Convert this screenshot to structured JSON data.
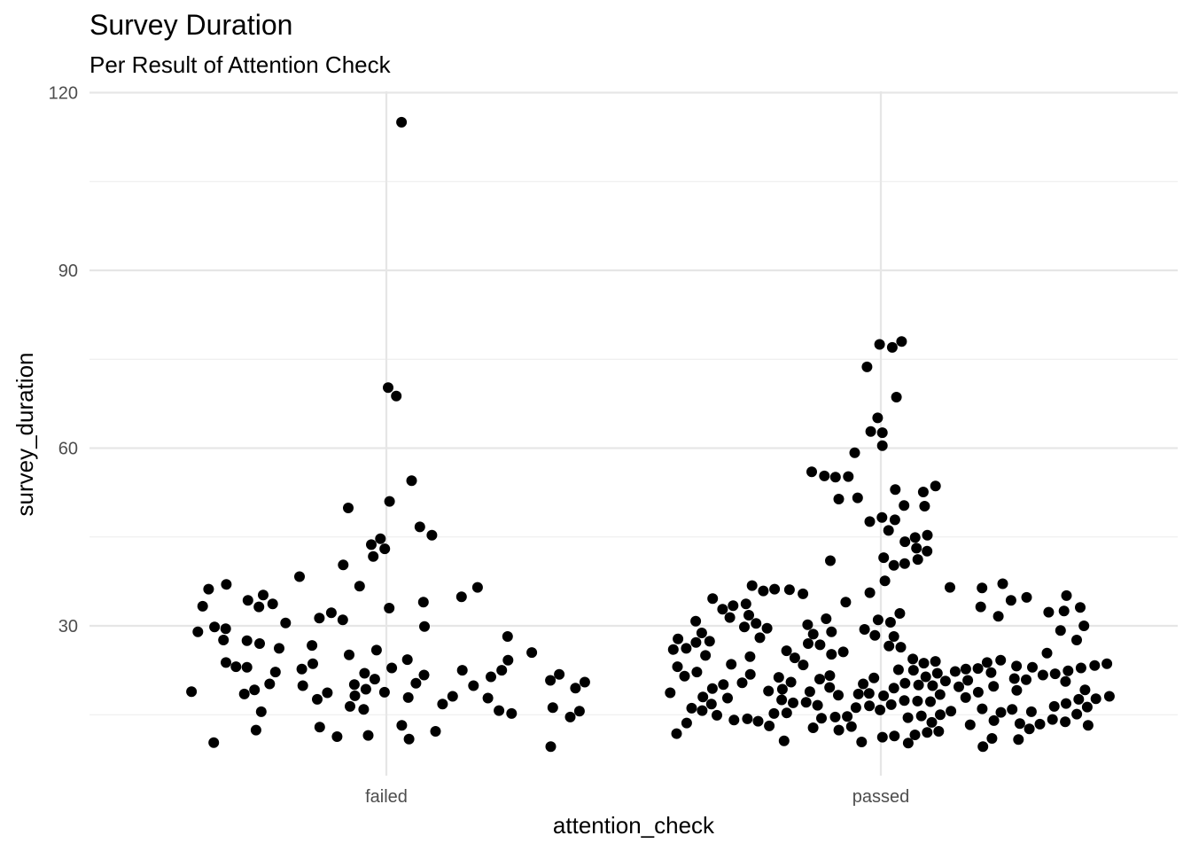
{
  "chart_data": {
    "type": "scatter",
    "subtype": "beeswarm",
    "title": "Survey Duration",
    "subtitle": "Per Result of Attention Check",
    "xlabel": "attention_check",
    "ylabel": "survey_duration",
    "categories": [
      "failed",
      "passed"
    ],
    "ylim": [
      3,
      120
    ],
    "yticks": [
      30,
      60,
      90,
      120
    ],
    "grid": true,
    "legend": "none",
    "point_color": "#000000",
    "series": [
      {
        "category": "failed",
        "values": [
          115,
          70.2,
          68.8,
          54.5,
          51.0,
          49.9,
          46.7,
          45.3,
          44.7,
          43.7,
          43.0,
          41.7,
          40.3,
          38.3,
          37.0,
          36.7,
          36.5,
          36.2,
          35.2,
          34.9,
          34.3,
          34.0,
          33.7,
          33.3,
          33.2,
          33.0,
          32.2,
          31.3,
          31.0,
          30.5,
          29.9,
          29.8,
          29.5,
          29.0,
          28.2,
          27.6,
          27.5,
          27.0,
          26.7,
          26.2,
          25.9,
          25.5,
          25.1,
          24.3,
          24.2,
          23.8,
          23.6,
          23.1,
          23.0,
          22.9,
          22.7,
          22.5,
          22.5,
          22.2,
          22.0,
          21.8,
          21.7,
          21.4,
          21.0,
          20.8,
          20.5,
          20.3,
          20.2,
          20.1,
          19.9,
          19.9,
          19.5,
          19.3,
          19.2,
          18.9,
          18.8,
          18.7,
          18.5,
          18.2,
          18.1,
          17.9,
          17.8,
          17.6,
          16.8,
          16.4,
          16.2,
          15.9,
          15.7,
          15.6,
          15.5,
          15.2,
          14.6,
          13.2,
          12.9,
          12.4,
          12.2,
          11.5,
          11.3,
          10.9,
          10.3,
          9.6
        ]
      },
      {
        "category": "passed",
        "values": [
          78,
          77.5,
          77,
          73.7,
          68.6,
          65.1,
          62.8,
          62.6,
          60.4,
          59.2,
          56,
          55.3,
          55.2,
          55.1,
          53.6,
          53,
          52.6,
          51.6,
          51.4,
          50.3,
          50.2,
          48.3,
          47.9,
          47.6,
          46.1,
          45.3,
          44.9,
          44.2,
          43.1,
          42.6,
          41.5,
          41.2,
          41,
          40.5,
          40.2,
          37.6,
          37.1,
          36.8,
          36.5,
          36.4,
          36.2,
          36.1,
          35.9,
          35.6,
          35.4,
          35.1,
          34.8,
          34.6,
          34.3,
          34,
          33.7,
          33.4,
          33.2,
          33.1,
          32.8,
          32.5,
          32.3,
          32.1,
          31.8,
          31.6,
          31.4,
          31.2,
          31,
          30.8,
          30.6,
          30.4,
          30.2,
          30,
          29.8,
          29.6,
          29.4,
          29.2,
          29,
          28.8,
          28.6,
          28.4,
          28.2,
          28,
          27.8,
          27.6,
          27.4,
          27.2,
          27,
          26.8,
          26.6,
          26.4,
          26.2,
          26,
          25.8,
          25.6,
          25.4,
          25.2,
          25,
          24.8,
          24.6,
          24.4,
          24.2,
          24,
          23.8,
          23.7,
          23.6,
          23.5,
          23.4,
          23.3,
          23.2,
          23.1,
          23,
          22.9,
          22.8,
          22.7,
          22.6,
          22.5,
          22.4,
          22.3,
          22.2,
          22.1,
          22,
          21.9,
          21.8,
          21.7,
          21.6,
          21.5,
          21.4,
          21.3,
          21.2,
          21.1,
          21,
          20.9,
          20.8,
          20.7,
          20.6,
          20.5,
          20.4,
          20.3,
          20.2,
          20.1,
          20,
          19.9,
          19.8,
          19.7,
          19.6,
          19.5,
          19.4,
          19.3,
          19.2,
          19.1,
          19,
          18.9,
          18.8,
          18.7,
          18.6,
          18.5,
          18.4,
          18.3,
          18.2,
          18.1,
          18,
          17.9,
          17.8,
          17.7,
          17.6,
          17.5,
          17.4,
          17.3,
          17.2,
          17.1,
          17,
          16.9,
          16.8,
          16.7,
          16.6,
          16.5,
          16.4,
          16.3,
          16.2,
          16.1,
          16,
          15.9,
          15.8,
          15.7,
          15.6,
          15.5,
          15.4,
          15.3,
          15.2,
          15.1,
          15,
          14.9,
          14.8,
          14.7,
          14.6,
          14.5,
          14.4,
          14.3,
          14.2,
          14.1,
          14,
          13.9,
          13.8,
          13.7,
          13.6,
          13.5,
          13.4,
          13.3,
          13.2,
          13.1,
          13,
          12.8,
          12.6,
          12.4,
          12.2,
          12,
          11.8,
          11.6,
          11.4,
          11.2,
          11,
          10.8,
          10.6,
          10.4,
          10.2,
          9.6
        ]
      }
    ]
  }
}
